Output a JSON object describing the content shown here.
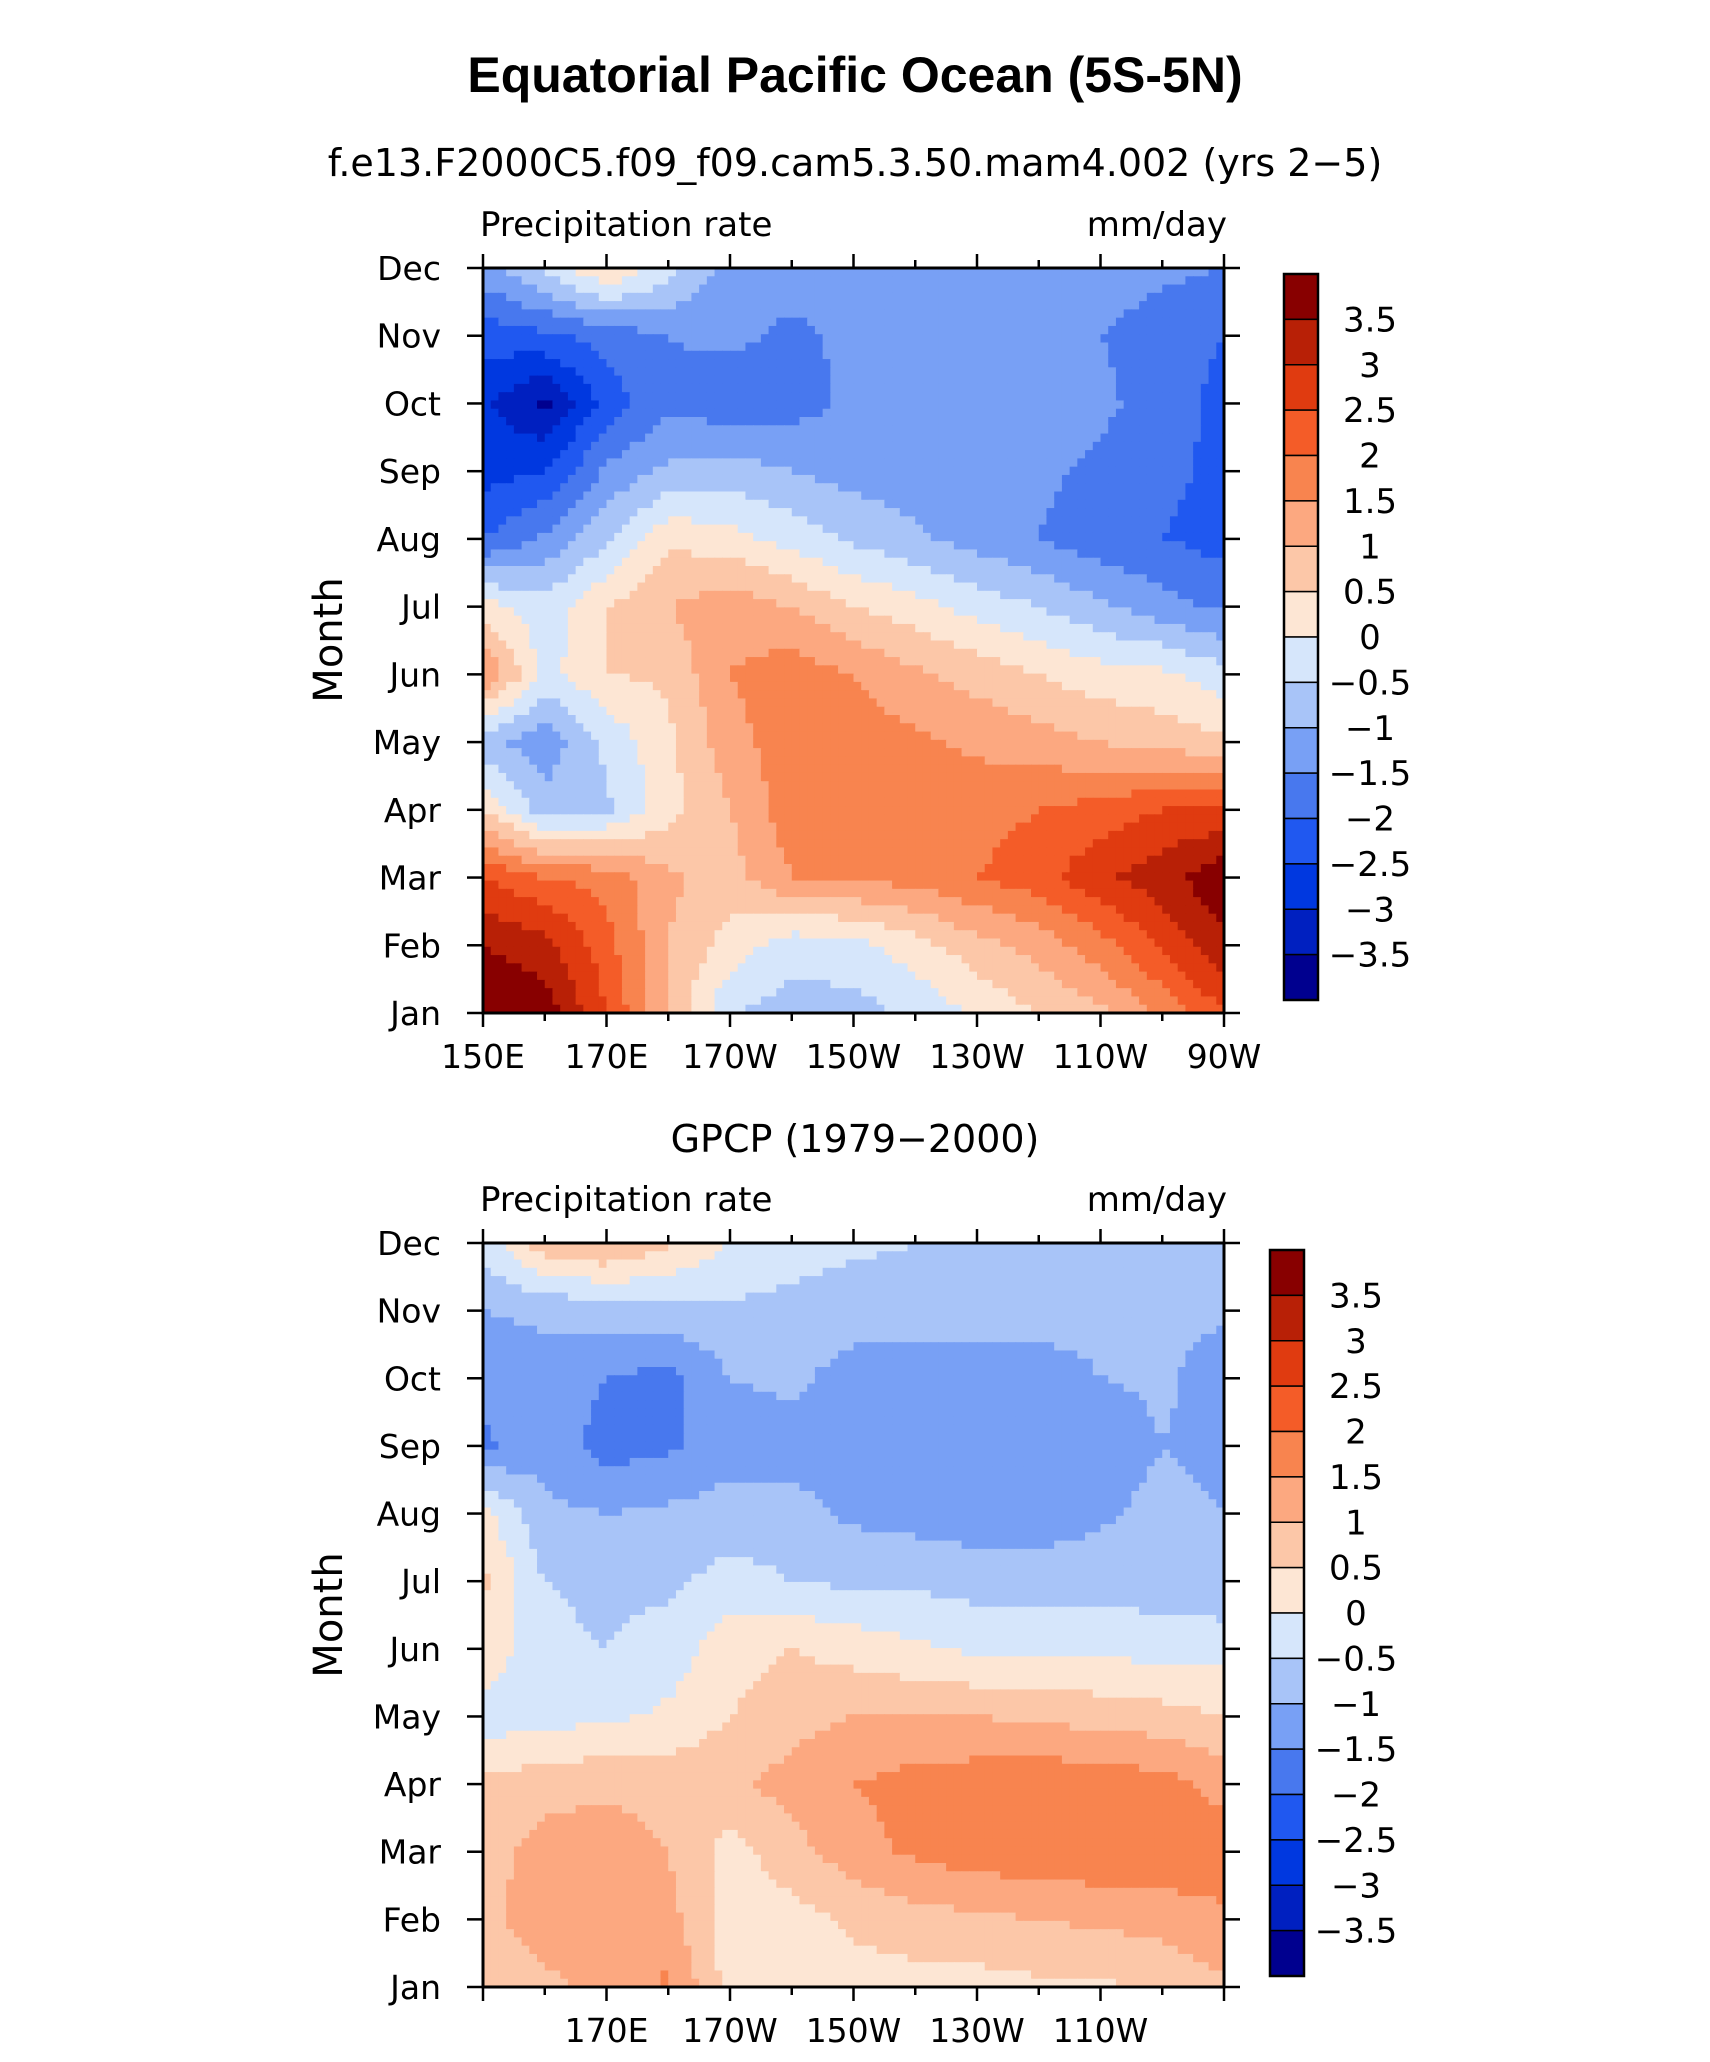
{
  "figure": {
    "title": "Equatorial Pacific Ocean (5S-5N)",
    "panel_title_top": "f.e13.F2000C5.f09_f09.cam5.3.50.mam4.002 (yrs 2−5)",
    "panel_title_bottom": "GPCP (1979−2000)"
  },
  "colors": {
    "levels": [
      "#00008f",
      "#0020c0",
      "#0038e0",
      "#2058f0",
      "#4878ee",
      "#78a0f5",
      "#a8c4f8",
      "#d6e6fb",
      "#fde6d4",
      "#fcc7a8",
      "#fca880",
      "#f8844f",
      "#f45c28",
      "#e03b10",
      "#b82006",
      "#880000"
    ]
  },
  "chart_data": [
    {
      "type": "heatmap",
      "name": "f.e13.F2000C5.f09_f09.cam5.3.50.mam4.002 (yrs 2−5)",
      "left_string": "Precipitation rate",
      "right_string": "mm/day",
      "xlabel": "",
      "ylabel": "Month",
      "x_tick_labels": [
        "150E",
        "170E",
        "170W",
        "150W",
        "130W",
        "110W",
        "90W"
      ],
      "y_tick_labels": [
        "Jan",
        "Feb",
        "Mar",
        "Apr",
        "May",
        "Jun",
        "Jul",
        "Aug",
        "Sep",
        "Oct",
        "Nov",
        "Dec"
      ],
      "x_longitudes": [
        150,
        160,
        170,
        180,
        190,
        200,
        210,
        220,
        230,
        240,
        250,
        260,
        270
      ],
      "xlim": [
        150,
        270
      ],
      "colorbar_labels": [
        "3.5",
        "3",
        "2.5",
        "2",
        "1.5",
        "1",
        "0.5",
        "0",
        "−0.5",
        "−1",
        "−1.5",
        "−2",
        "−2.5",
        "−3",
        "−3.5"
      ],
      "colorbar_levels": [
        -3.5,
        -3,
        -2.5,
        -2,
        -1.5,
        -1,
        -0.5,
        0,
        0.5,
        1,
        1.5,
        2,
        2.5,
        3,
        3.5
      ],
      "values": [
        [
          4.0,
          3.8,
          2.5,
          1.0,
          -0.5,
          -0.7,
          -0.7,
          -0.4,
          0.1,
          0.5,
          0.9,
          1.6,
          2.5
        ],
        [
          3.5,
          3.2,
          2.2,
          1.0,
          0.3,
          -0.3,
          -0.2,
          0.3,
          0.8,
          1.2,
          1.8,
          2.6,
          3.4
        ],
        [
          2.5,
          2.0,
          1.8,
          1.1,
          0.8,
          1.5,
          1.6,
          1.7,
          2.0,
          2.3,
          2.9,
          3.3,
          3.9
        ],
        [
          0.5,
          -0.8,
          -0.6,
          0.3,
          1.0,
          1.8,
          1.8,
          1.8,
          1.8,
          2.0,
          2.2,
          2.5,
          2.6
        ],
        [
          -0.9,
          -1.3,
          -0.4,
          0.4,
          1.3,
          1.8,
          1.8,
          1.6,
          1.4,
          1.2,
          1.0,
          0.8,
          0.6
        ],
        [
          1.6,
          -0.2,
          0.5,
          0.6,
          1.5,
          1.8,
          1.5,
          1.1,
          0.8,
          0.5,
          0.2,
          0.1,
          -0.3
        ],
        [
          0.2,
          -0.3,
          0.5,
          1.0,
          1.3,
          1.0,
          0.5,
          0.2,
          -0.2,
          -0.5,
          -0.9,
          -1.3,
          -1.6
        ],
        [
          -2.0,
          -1.4,
          -0.6,
          0.4,
          0.2,
          -0.2,
          -0.6,
          -0.9,
          -1.2,
          -1.5,
          -1.8,
          -2.0,
          -2.2
        ],
        [
          -2.7,
          -2.5,
          -1.4,
          -0.9,
          -0.8,
          -1.0,
          -1.2,
          -1.3,
          -1.3,
          -1.4,
          -1.6,
          -1.9,
          -2.1
        ],
        [
          -2.9,
          -3.6,
          -2.3,
          -1.6,
          -1.8,
          -1.7,
          -1.4,
          -1.2,
          -1.2,
          -1.3,
          -1.4,
          -1.7,
          -2.2
        ],
        [
          -2.3,
          -2.1,
          -1.8,
          -1.5,
          -1.4,
          -1.6,
          -1.4,
          -1.3,
          -1.3,
          -1.3,
          -1.5,
          -1.7,
          -2.0
        ],
        [
          -1.2,
          -0.4,
          0.6,
          -0.3,
          -1.2,
          -1.3,
          -1.3,
          -1.3,
          -1.3,
          -1.3,
          -1.3,
          -1.4,
          -1.5
        ]
      ]
    },
    {
      "type": "heatmap",
      "name": "GPCP (1979−2000)",
      "left_string": "Precipitation rate",
      "right_string": "mm/day",
      "xlabel": "",
      "ylabel": "Month",
      "x_tick_labels": [
        "170E",
        "170W",
        "150W",
        "130W",
        "110W"
      ],
      "y_tick_labels": [
        "Jan",
        "Feb",
        "Mar",
        "Apr",
        "May",
        "Jun",
        "Jul",
        "Aug",
        "Sep",
        "Oct",
        "Nov",
        "Dec"
      ],
      "x_longitudes": [
        150,
        160,
        170,
        180,
        190,
        200,
        210,
        220,
        230,
        240,
        250,
        260,
        270
      ],
      "xlim": [
        150,
        270
      ],
      "colorbar_labels": [
        "3.5",
        "3",
        "2.5",
        "2",
        "1.5",
        "1",
        "0.5",
        "0",
        "−0.5",
        "−1",
        "−1.5",
        "−2",
        "−2.5",
        "−3",
        "−3.5"
      ],
      "colorbar_levels": [
        -3.5,
        -3,
        -2.5,
        -2,
        -1.5,
        -1,
        -0.5,
        0,
        0.5,
        1,
        1.5,
        2,
        2.5,
        3,
        3.5
      ],
      "values": [
        [
          0.8,
          0.9,
          1.1,
          1.6,
          0.3,
          0.2,
          0.3,
          0.3,
          0.3,
          0.4,
          0.4,
          0.6,
          0.9
        ],
        [
          0.9,
          1.2,
          1.3,
          1.2,
          0.2,
          0.3,
          0.6,
          0.8,
          0.9,
          1.0,
          1.1,
          1.2,
          1.4
        ],
        [
          0.8,
          1.2,
          1.3,
          1.0,
          0.3,
          0.8,
          1.3,
          1.6,
          1.8,
          1.8,
          1.9,
          1.9,
          1.8
        ],
        [
          0.6,
          0.8,
          0.9,
          0.8,
          0.9,
          1.2,
          1.5,
          1.7,
          1.8,
          1.9,
          1.8,
          1.7,
          1.3
        ],
        [
          -0.3,
          -0.2,
          -0.1,
          0.1,
          0.5,
          0.8,
          1.0,
          1.0,
          1.0,
          0.9,
          0.8,
          0.7,
          0.5
        ],
        [
          0.4,
          -0.4,
          -0.5,
          -0.3,
          0.3,
          0.5,
          0.3,
          0.1,
          -0.1,
          -0.1,
          -0.1,
          -0.2,
          -0.2
        ],
        [
          0.6,
          -0.5,
          -0.6,
          -0.6,
          -0.3,
          -0.5,
          -0.6,
          -0.6,
          -0.7,
          -0.7,
          -0.7,
          -0.8,
          -0.9
        ],
        [
          0.2,
          -0.9,
          -1.0,
          -0.9,
          -0.8,
          -0.8,
          -1.1,
          -1.2,
          -1.3,
          -1.3,
          -1.1,
          -0.8,
          -1.0
        ],
        [
          -1.6,
          -1.2,
          -1.7,
          -1.6,
          -1.2,
          -1.2,
          -1.4,
          -1.4,
          -1.5,
          -1.5,
          -1.4,
          -1.0,
          -1.2
        ],
        [
          -1.3,
          -1.2,
          -1.5,
          -1.7,
          -1.0,
          -0.9,
          -1.2,
          -1.3,
          -1.3,
          -1.2,
          -1.0,
          -0.9,
          -1.3
        ],
        [
          -1.0,
          -0.9,
          -0.8,
          -0.7,
          -0.6,
          -0.7,
          -0.8,
          -0.7,
          -0.7,
          -0.8,
          -0.9,
          -0.9,
          -0.9
        ],
        [
          -0.3,
          0.8,
          1.1,
          0.6,
          0.0,
          -0.2,
          -0.4,
          -0.5,
          -0.5,
          -0.5,
          -0.6,
          -0.6,
          -0.6
        ]
      ]
    }
  ]
}
